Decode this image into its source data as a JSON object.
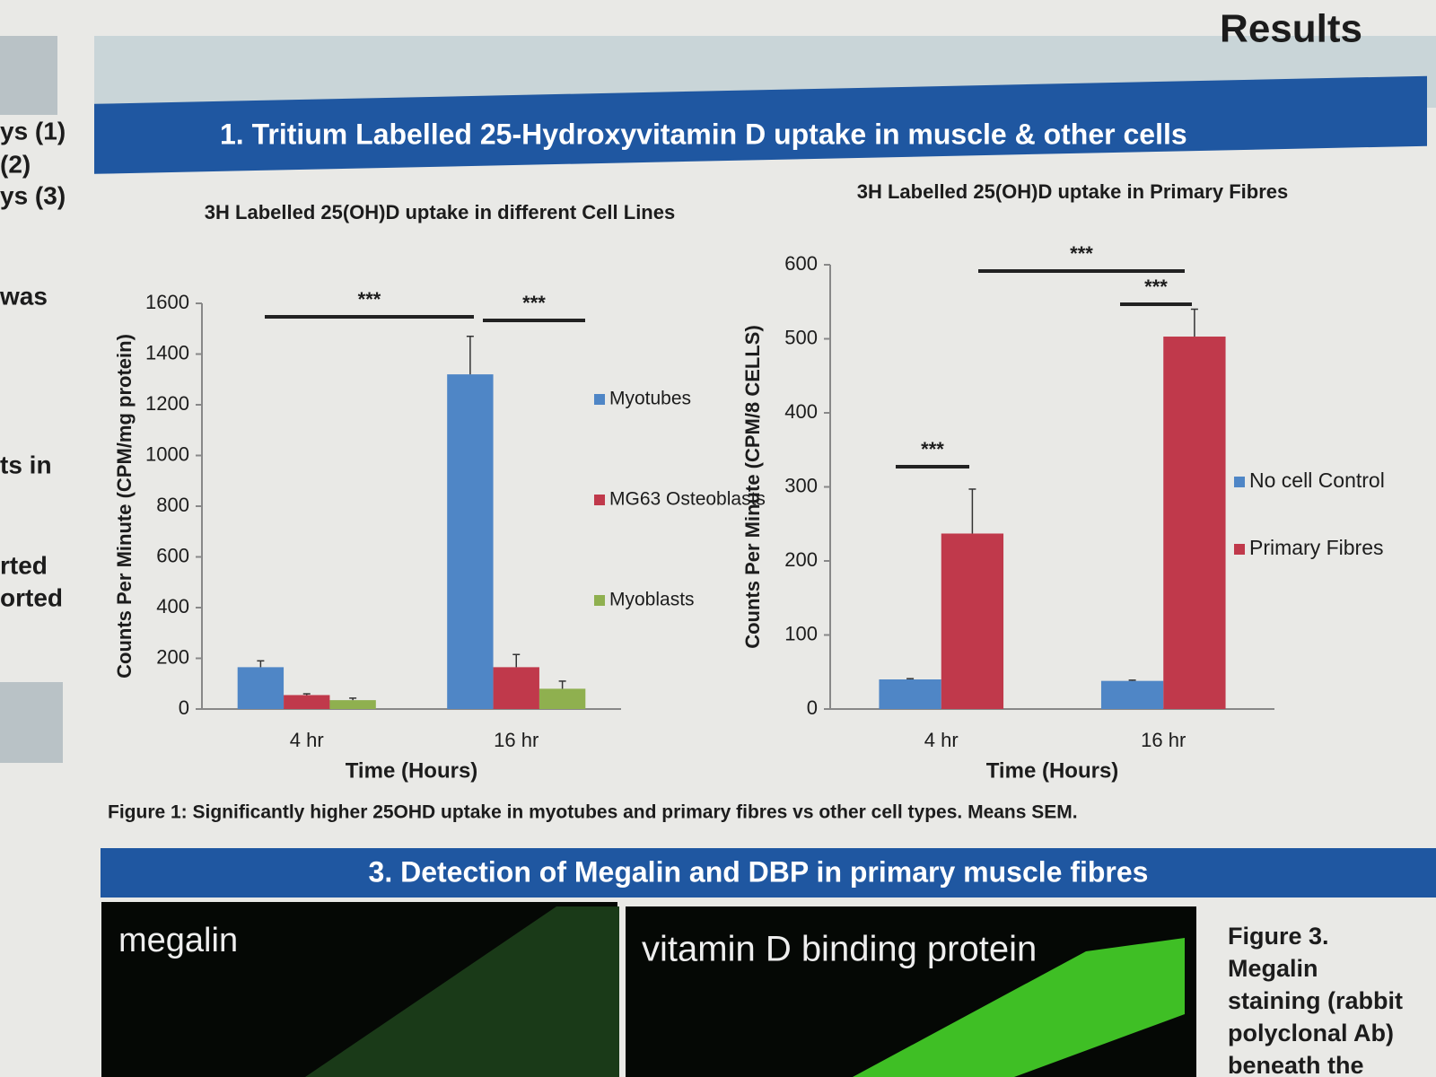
{
  "header": {
    "title": "Results"
  },
  "sidebar": [
    "ys (1)",
    "(2)",
    "ys (3)",
    "was",
    "ts in",
    "rted",
    "orted"
  ],
  "section1": {
    "title": "1. Tritium Labelled 25-Hydroxyvitamin D uptake in muscle & other cells",
    "caption": "Figure 1: Significantly higher 25OHD uptake in myotubes and primary fibres vs other cell types. Means    SEM."
  },
  "chart_data": [
    {
      "type": "bar",
      "title": "3H Labelled 25(OH)D uptake in different Cell Lines",
      "y_label": "Counts Per Minute (CPM/mg protein)",
      "x_label": "Time (Hours)",
      "categories": [
        "4 hr",
        "16 hr"
      ],
      "series": [
        {
          "name": "Myotubes",
          "color": "#4f86c6",
          "values": [
            165,
            1320
          ],
          "errors": [
            25,
            150
          ]
        },
        {
          "name": "MG63 Osteoblasts",
          "color": "#c0394b",
          "values": [
            55,
            165
          ],
          "errors": [
            5,
            50
          ]
        },
        {
          "name": "Myoblasts",
          "color": "#8fb04f",
          "values": [
            35,
            80
          ],
          "errors": [
            8,
            30
          ]
        }
      ],
      "ylim": [
        0,
        1600
      ],
      "yticks": [
        0,
        200,
        400,
        600,
        800,
        1000,
        1200,
        1400,
        1600
      ],
      "grid": false,
      "annotations": [
        "***",
        "***"
      ]
    },
    {
      "type": "bar",
      "title": "3H Labelled 25(OH)D uptake in Primary Fibres",
      "y_label": "Counts Per Minute (CPM/8 CELLS)",
      "x_label": "Time (Hours)",
      "categories": [
        "4 hr",
        "16 hr"
      ],
      "series": [
        {
          "name": "No cell Control",
          "color": "#4f86c6",
          "values": [
            40,
            38
          ],
          "errors": [
            1,
            1
          ]
        },
        {
          "name": "Primary Fibres",
          "color": "#c0394b",
          "values": [
            237,
            503
          ],
          "errors": [
            60,
            37
          ]
        }
      ],
      "ylim": [
        0,
        600
      ],
      "yticks": [
        0,
        100,
        200,
        300,
        400,
        500,
        600
      ],
      "grid": false,
      "annotations": [
        "***",
        "***",
        "***"
      ]
    }
  ],
  "section3": {
    "title": "3. Detection of Megalin and DBP in primary muscle fibres",
    "image1_label": "megalin",
    "image2_label": "vitamin D binding protein",
    "figure3": [
      "Figure 3.",
      "Megalin",
      "staining (rabbit",
      "polyclonal Ab)",
      "beneath the"
    ]
  }
}
